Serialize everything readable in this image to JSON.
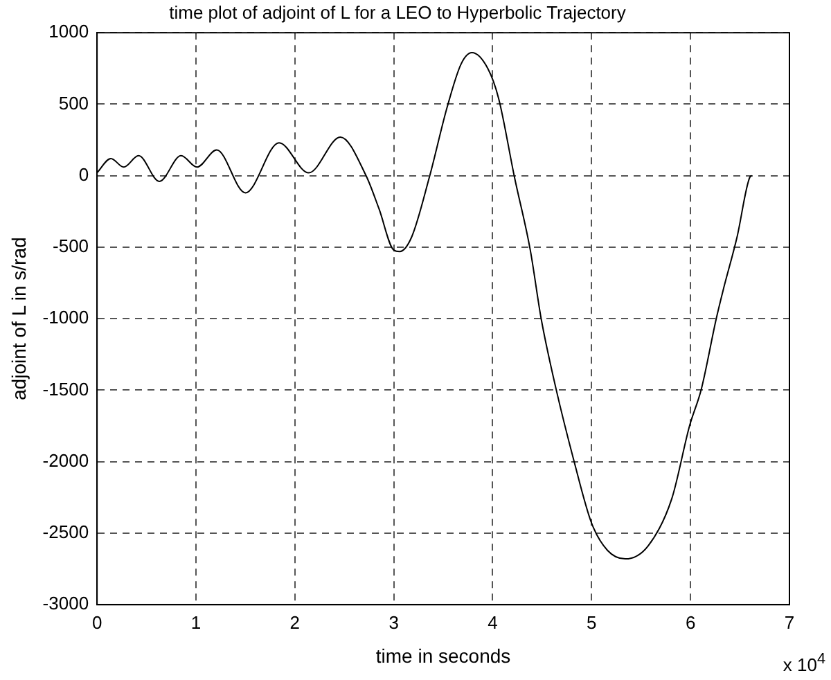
{
  "chart_data": {
    "type": "line",
    "title": "time plot of adjoint of L for a LEO to Hyperbolic Trajectory",
    "xlabel": "time in seconds",
    "ylabel": "adjoint of L in s/rad",
    "annotations": [
      "x 10$^{4}$"
    ],
    "x": [
      0,
      0.14,
      0.27,
      0.42,
      0.63,
      0.85,
      1.01,
      1.21,
      1.5,
      1.84,
      2.14,
      2.46,
      2.72,
      2.85,
      3.0,
      3.06,
      3.18,
      3.36,
      3.54,
      3.68,
      3.79,
      3.95,
      4.06,
      4.22,
      4.38,
      4.49,
      4.64,
      4.82,
      5.0,
      5.16,
      5.34,
      5.57,
      5.81,
      5.99,
      6.11,
      6.26,
      6.33,
      6.47,
      6.6,
      6.62
    ],
    "series": [
      {
        "color": "#000000",
        "values": [
          20,
          120,
          60,
          140,
          -40,
          140,
          60,
          180,
          -120,
          230,
          20,
          270,
          0,
          -230,
          -520,
          -530,
          -430,
          -10,
          480,
          780,
          860,
          750,
          540,
          -10,
          -520,
          -1000,
          -1490,
          -1990,
          -2430,
          -2620,
          -2680,
          -2590,
          -2260,
          -1750,
          -1490,
          -1000,
          -800,
          -430,
          -10,
          0
        ]
      }
    ],
    "xlim": [
      0,
      7
    ],
    "xticks": [
      0,
      1,
      2,
      3,
      4,
      5,
      6,
      7
    ],
    "ylim": [
      -3000,
      1000
    ],
    "yticks": [
      -3000,
      -2500,
      -2000,
      -1500,
      -1000,
      -500,
      0,
      500,
      1000
    ],
    "grid": true,
    "legend": false,
    "marker": "none",
    "line_style": "solid"
  }
}
